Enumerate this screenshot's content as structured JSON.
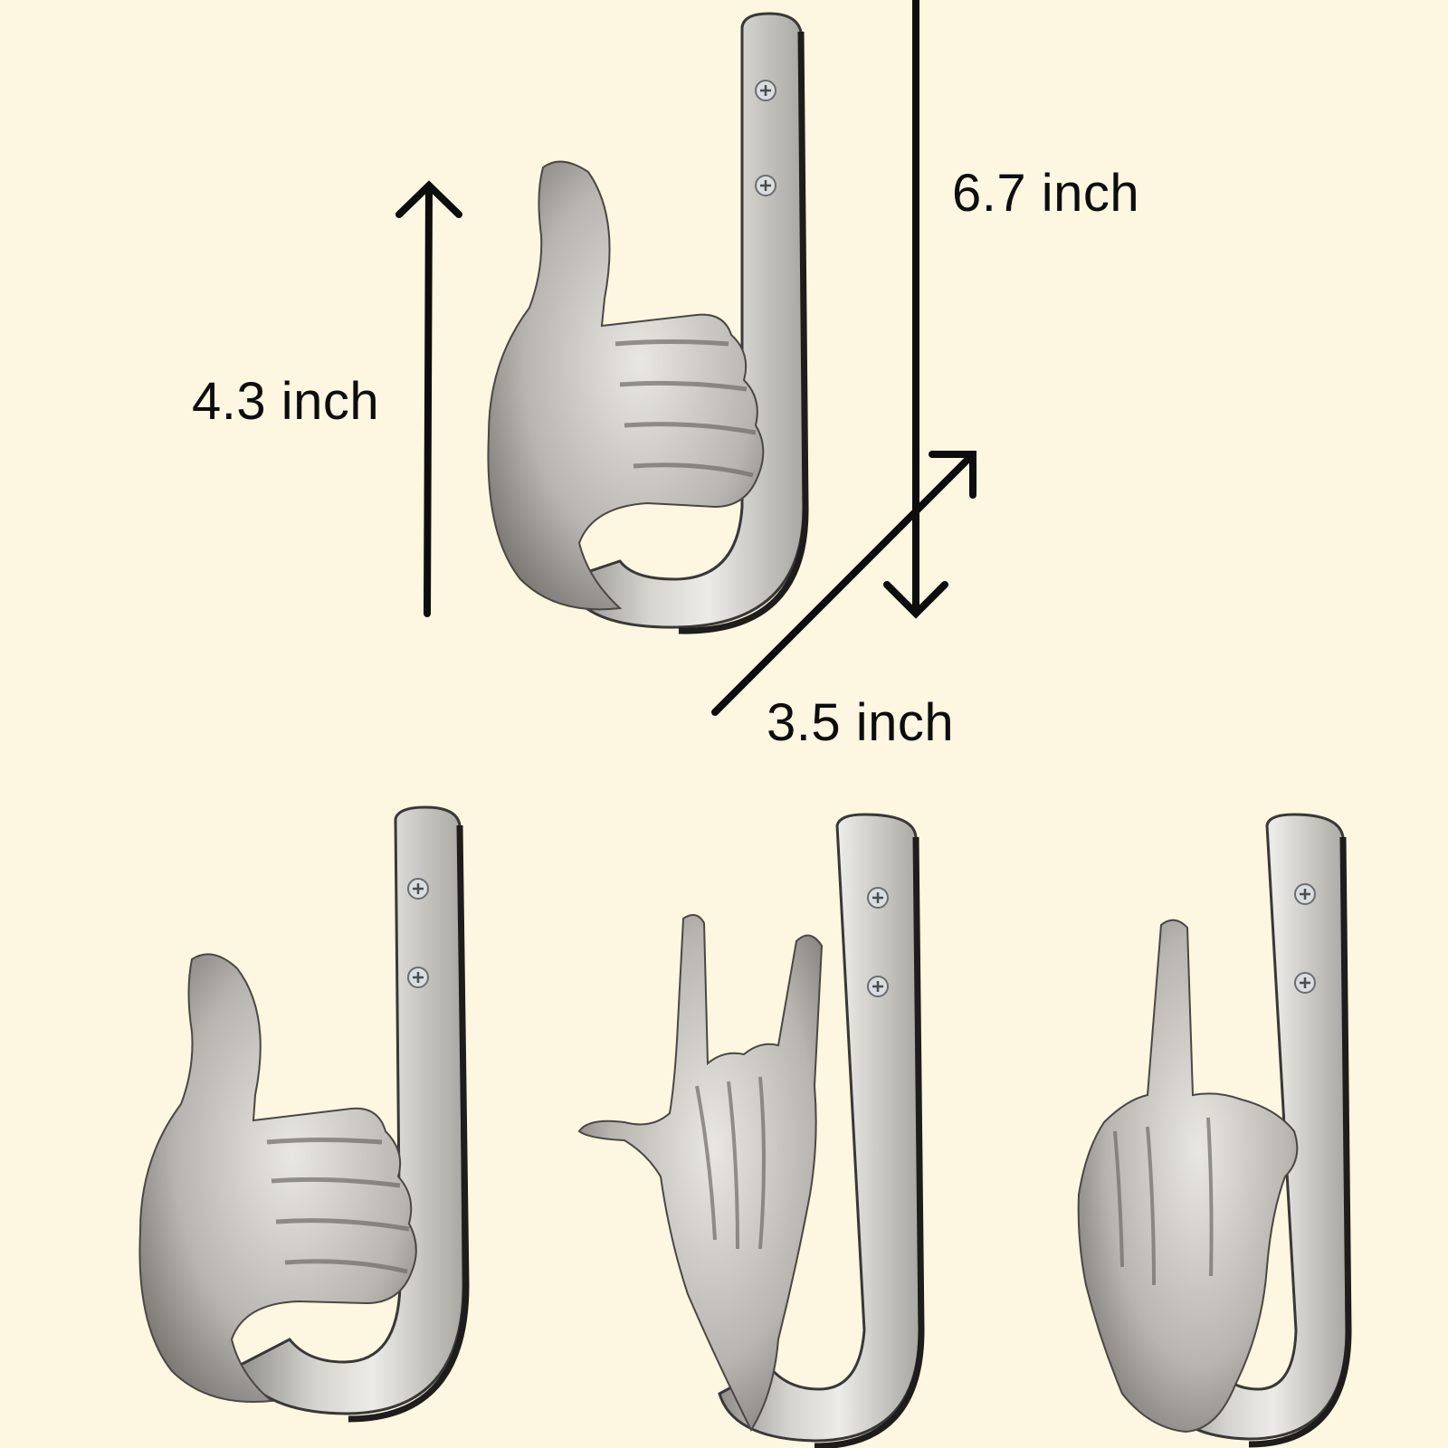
{
  "dimensions": {
    "hook_height": "4.3 inch",
    "total_height": "6.7 inch",
    "depth": "3.5 inch"
  },
  "products": [
    {
      "gesture": "thumbs-up"
    },
    {
      "gesture": "thumbs-up"
    },
    {
      "gesture": "rock-on"
    },
    {
      "gesture": "middle-finger"
    }
  ],
  "colors": {
    "background": "#fdf6e1",
    "metal": "#c9c7c2",
    "dimension_lines": "#0d0d0d"
  }
}
